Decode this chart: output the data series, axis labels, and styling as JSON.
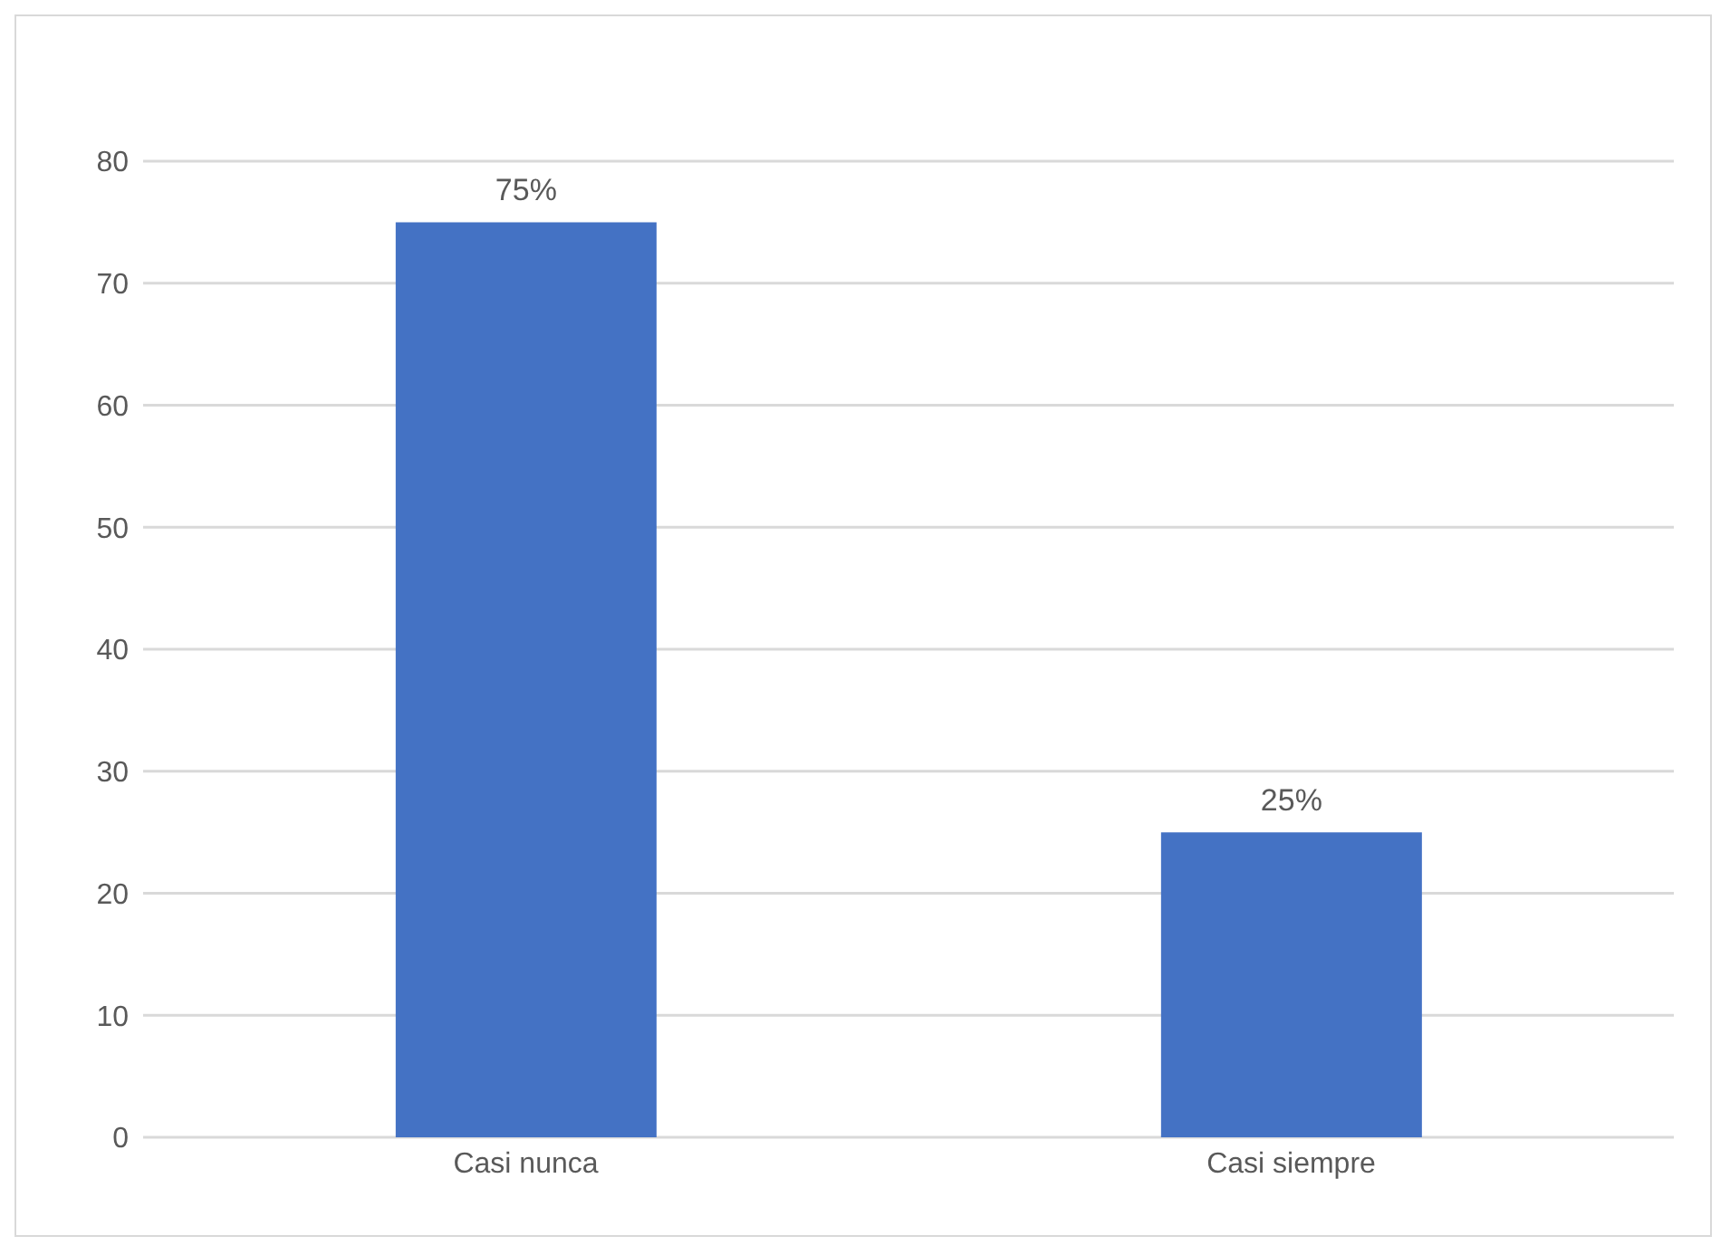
{
  "chart_data": {
    "type": "bar",
    "categories": [
      "Casi nunca",
      "Casi siempre"
    ],
    "values": [
      75,
      25
    ],
    "color": "#4472c4",
    "value_labels": [
      "75%",
      "25%"
    ],
    "ylim": [
      0,
      80
    ],
    "yticks": [
      0,
      10,
      20,
      30,
      40,
      50,
      60,
      70,
      80
    ],
    "grid": "y"
  }
}
